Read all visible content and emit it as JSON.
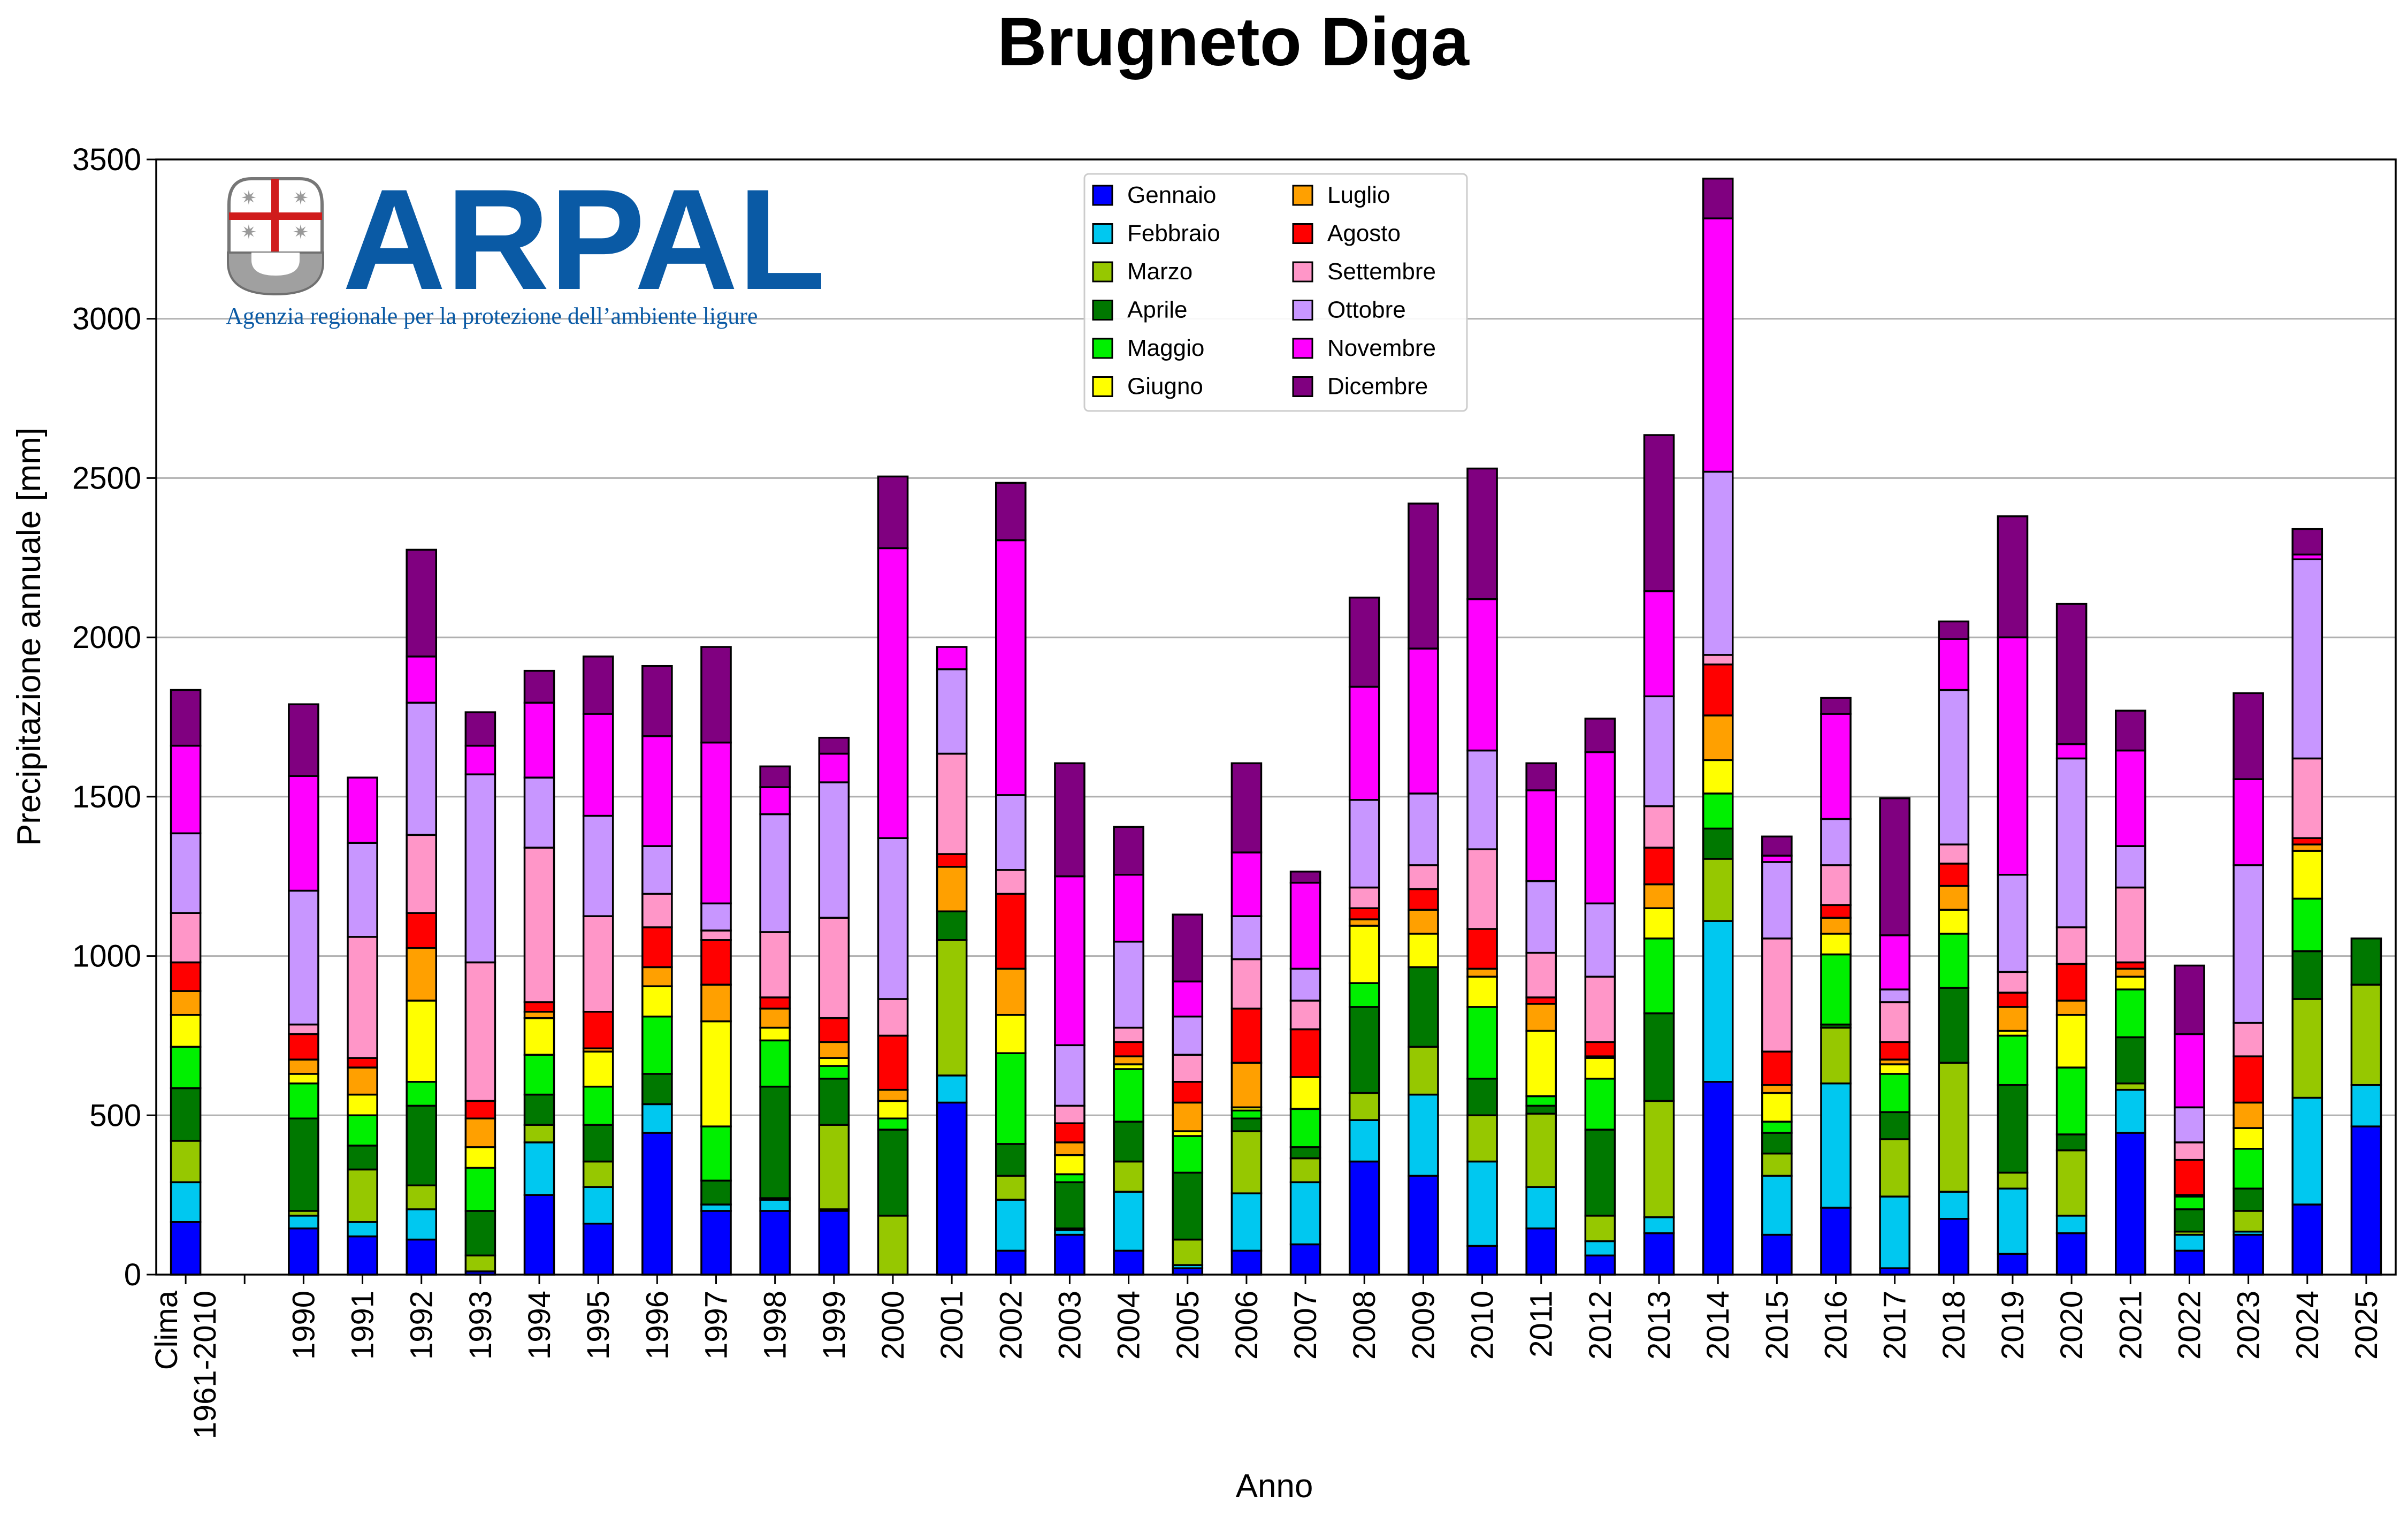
{
  "chart_data": {
    "type": "bar",
    "stacked": true,
    "title": "Brugneto Diga",
    "xlabel": "Anno",
    "ylabel": "Precipitazione annuale [mm]",
    "ylim": [
      0,
      3500
    ],
    "yticks": [
      0,
      500,
      1000,
      1500,
      2000,
      2500,
      3000,
      3500
    ],
    "grid": "horizontal",
    "legend_position": "top-center",
    "categories": [
      "Clima\n1961-2010",
      "",
      "1990",
      "1991",
      "1992",
      "1993",
      "1994",
      "1995",
      "1996",
      "1997",
      "1998",
      "1999",
      "2000",
      "2001",
      "2002",
      "2003",
      "2004",
      "2005",
      "2006",
      "2007",
      "2008",
      "2009",
      "2010",
      "2011",
      "2012",
      "2013",
      "2014",
      "2015",
      "2016",
      "2017",
      "2018",
      "2019",
      "2020",
      "2021",
      "2022",
      "2023",
      "2024",
      "2025"
    ],
    "series": [
      {
        "name": "Gennaio",
        "color": "#0000ff",
        "values": [
          165,
          0,
          145,
          120,
          110,
          10,
          250,
          160,
          445,
          200,
          200,
          200,
          0,
          540,
          75,
          125,
          75,
          20,
          75,
          95,
          355,
          310,
          90,
          145,
          60,
          130,
          605,
          125,
          210,
          20,
          175,
          65,
          130,
          445,
          75,
          125,
          220,
          465
        ]
      },
      {
        "name": "Febbraio",
        "color": "#00c8f0",
        "values": [
          125,
          0,
          40,
          45,
          95,
          0,
          165,
          115,
          90,
          20,
          35,
          5,
          0,
          85,
          160,
          15,
          185,
          10,
          180,
          195,
          130,
          255,
          265,
          130,
          45,
          50,
          505,
          185,
          390,
          225,
          85,
          205,
          55,
          135,
          50,
          10,
          335,
          130
        ]
      },
      {
        "name": "Marzo",
        "color": "#96c800",
        "values": [
          130,
          0,
          15,
          165,
          75,
          50,
          55,
          80,
          0,
          0,
          5,
          265,
          185,
          425,
          75,
          5,
          95,
          80,
          195,
          75,
          85,
          150,
          145,
          230,
          80,
          365,
          195,
          70,
          175,
          180,
          405,
          50,
          205,
          20,
          10,
          65,
          310,
          315
        ]
      },
      {
        "name": "Aprile",
        "color": "#007800",
        "values": [
          165,
          0,
          290,
          75,
          250,
          140,
          95,
          115,
          95,
          75,
          350,
          145,
          270,
          90,
          100,
          145,
          125,
          210,
          40,
          35,
          270,
          250,
          115,
          25,
          270,
          275,
          95,
          65,
          10,
          85,
          235,
          275,
          50,
          145,
          70,
          70,
          150,
          145
        ]
      },
      {
        "name": "Maggio",
        "color": "#00f000",
        "values": [
          130,
          0,
          110,
          95,
          75,
          135,
          125,
          120,
          180,
          170,
          145,
          40,
          35,
          0,
          285,
          25,
          165,
          115,
          25,
          120,
          75,
          0,
          225,
          30,
          160,
          235,
          110,
          35,
          220,
          120,
          170,
          155,
          210,
          150,
          40,
          125,
          165,
          0
        ]
      },
      {
        "name": "Giugno",
        "color": "#ffff00",
        "values": [
          100,
          0,
          30,
          65,
          255,
          65,
          115,
          110,
          95,
          330,
          40,
          25,
          55,
          0,
          120,
          60,
          15,
          15,
          10,
          100,
          180,
          105,
          95,
          205,
          65,
          95,
          105,
          90,
          65,
          30,
          75,
          15,
          165,
          40,
          5,
          65,
          150,
          0
        ]
      },
      {
        "name": "Luglio",
        "color": "#ffa000",
        "values": [
          75,
          0,
          45,
          85,
          165,
          90,
          20,
          10,
          60,
          115,
          60,
          50,
          35,
          140,
          145,
          40,
          25,
          90,
          140,
          0,
          20,
          75,
          25,
          85,
          5,
          75,
          140,
          25,
          50,
          15,
          75,
          75,
          45,
          25,
          0,
          80,
          20,
          0
        ]
      },
      {
        "name": "Agosto",
        "color": "#ff0000",
        "values": [
          90,
          0,
          80,
          30,
          110,
          55,
          30,
          115,
          125,
          140,
          35,
          75,
          170,
          40,
          235,
          60,
          45,
          65,
          170,
          150,
          35,
          65,
          125,
          20,
          45,
          115,
          160,
          105,
          40,
          55,
          70,
          45,
          115,
          20,
          110,
          145,
          20,
          0
        ]
      },
      {
        "name": "Settembre",
        "color": "#ff96c8",
        "values": [
          155,
          0,
          30,
          380,
          245,
          435,
          485,
          300,
          105,
          30,
          205,
          315,
          115,
          315,
          75,
          55,
          45,
          85,
          155,
          90,
          65,
          75,
          250,
          140,
          205,
          130,
          30,
          355,
          125,
          125,
          60,
          65,
          115,
          235,
          55,
          105,
          250,
          0
        ]
      },
      {
        "name": "Ottobre",
        "color": "#c896ff",
        "values": [
          250,
          0,
          420,
          295,
          415,
          590,
          220,
          315,
          150,
          85,
          370,
          425,
          505,
          265,
          235,
          190,
          270,
          120,
          135,
          100,
          275,
          225,
          310,
          225,
          230,
          345,
          575,
          240,
          145,
          40,
          485,
          305,
          530,
          130,
          110,
          495,
          625,
          0
        ]
      },
      {
        "name": "Novembre",
        "color": "#ff00ff",
        "values": [
          275,
          0,
          360,
          205,
          145,
          90,
          235,
          320,
          345,
          505,
          85,
          90,
          910,
          70,
          800,
          530,
          210,
          110,
          200,
          270,
          355,
          455,
          475,
          285,
          475,
          330,
          795,
          20,
          330,
          170,
          160,
          745,
          45,
          300,
          230,
          270,
          15,
          0
        ]
      },
      {
        "name": "Dicembre",
        "color": "#800080",
        "values": [
          175,
          0,
          225,
          0,
          335,
          105,
          100,
          180,
          220,
          300,
          65,
          50,
          225,
          0,
          180,
          355,
          150,
          210,
          280,
          35,
          280,
          455,
          410,
          85,
          105,
          490,
          125,
          60,
          50,
          430,
          55,
          380,
          440,
          125,
          215,
          270,
          80,
          0
        ]
      }
    ]
  },
  "logo": {
    "name": "ARPAL",
    "subtitle": "Agenzia regionale per la protezione dell’ambiente ligure"
  }
}
